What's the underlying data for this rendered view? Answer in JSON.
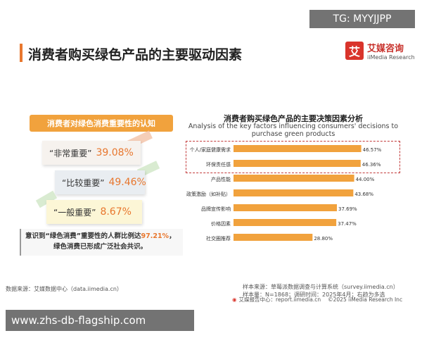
{
  "overlay": {
    "top_text": "TG: MYYJJPP",
    "bottom_text": "www.zhs-db-flagship.com"
  },
  "page": {
    "title": "消费者购买绿色产品的主要驱动因素"
  },
  "logo": {
    "mark": "艾",
    "name_cn": "艾媒咨询",
    "name_en": "iiMedia Research"
  },
  "left_panel": {
    "badge": "消费者对绿色消费重要性的认知",
    "items": [
      {
        "label": "“非常重要”",
        "value": "39.08%"
      },
      {
        "label": "“比较重要”",
        "value": "49.46%"
      },
      {
        "label": "“一般重要”",
        "value": "8.67%"
      }
    ],
    "summary_pre": "意识到“绿色消费”重要性的人群比例达",
    "summary_highlight": "97.21%",
    "summary_post": "，",
    "summary_line2": "绿色消费已形成广泛社会共识。",
    "data_source": "数据来源：艾媒数据中心（data.iimedia.cn）"
  },
  "chart_data": {
    "type": "bar",
    "orientation": "horizontal",
    "title": "消费者购买绿色产品的主要决策因素分析",
    "subtitle": "Analysis of the key factors influencing consumers' decisions to purchase green products",
    "categories": [
      "个人/家庭健康需求",
      "环保责任感",
      "产品性能",
      "政策激励（如补贴）",
      "品牌宣传影响",
      "价格因素",
      "社交圈推荐"
    ],
    "values": [
      46.57,
      46.36,
      44.0,
      43.68,
      37.69,
      37.47,
      28.8
    ],
    "value_labels": [
      "46.57%",
      "46.36%",
      "44.00%",
      "43.68%",
      "37.69%",
      "37.47%",
      "28.80%"
    ],
    "xlim": [
      0,
      50
    ],
    "bar_color": "#f1a23d",
    "highlighted_categories": [
      "个人/家庭健康需求",
      "环保责任感"
    ],
    "grid": false
  },
  "footer": {
    "sample_source": "样本来源：草莓派数据调查与计算系统（survey.iimedia.cn）",
    "sample_size": "样本量：N=1868；调研时间：2025年4月；右趋为多选",
    "report_center": "艾媒报告中心：report.iimedia.cn",
    "copyright": "©2025  iiMedia Research  Inc"
  }
}
